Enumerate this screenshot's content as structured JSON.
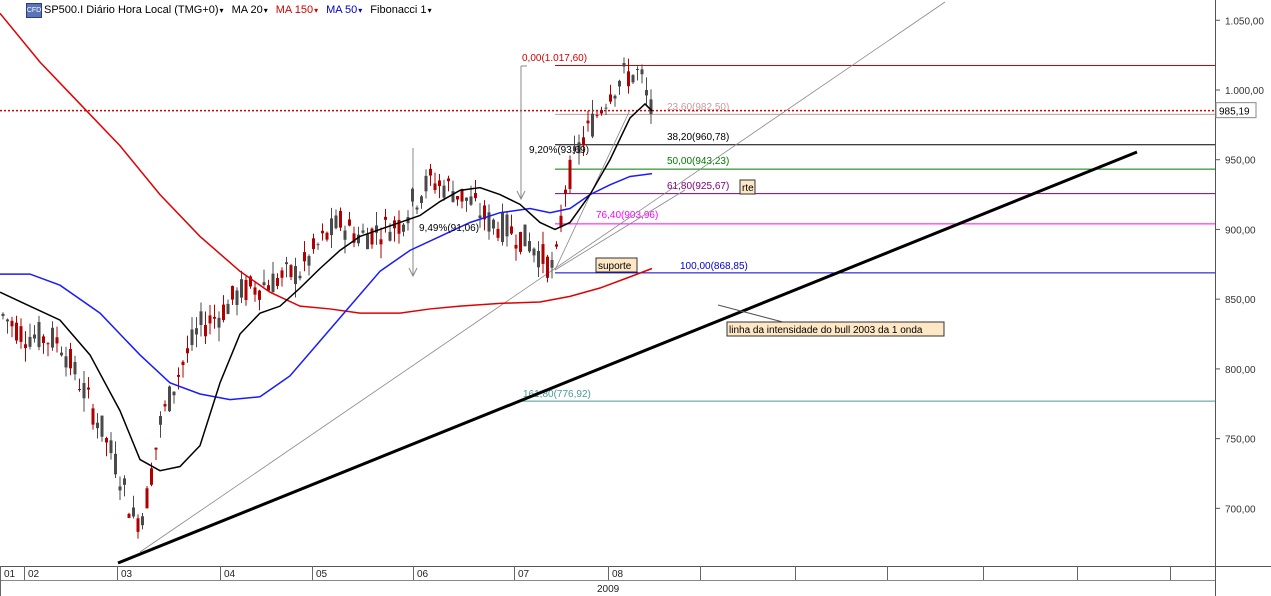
{
  "toolbar": {
    "instrument": "SP500.I Diário Hora Local (TMG+0)",
    "logo_text": "CFD",
    "indicators": [
      {
        "label": "MA 20",
        "color": "#000000"
      },
      {
        "label": "MA 150",
        "color": "#d40000"
      },
      {
        "label": "MA 50",
        "color": "#0000cc"
      },
      {
        "label": "Fibonacci 1",
        "color": "#000000"
      }
    ],
    "caret": "▾"
  },
  "chart_data": {
    "type": "candlestick",
    "y_axis_ticks": [
      "1.050,00",
      "1.000,00",
      "950,00",
      "900,00",
      "850,00",
      "800,00",
      "750,00",
      "700,00"
    ],
    "ylim": [
      660,
      1062
    ],
    "current_price_label": "985,19",
    "month_labels": [
      "01",
      "02",
      "03",
      "04",
      "05",
      "06",
      "07",
      "08"
    ],
    "year_label": "2009",
    "fibonacci_levels": [
      {
        "label": "0,00(1.017,60)",
        "value": 1017.6,
        "color": "#d40000"
      },
      {
        "label": "23,60(982,50)",
        "value": 982.5,
        "color": "#c89a9a"
      },
      {
        "label": "38,20(960,78)",
        "value": 960.78,
        "color": "#000000"
      },
      {
        "label": "50,00(943,23)",
        "value": 943.23,
        "color": "#007a00"
      },
      {
        "label": "61,80(925,67)",
        "value": 925.67,
        "color": "#800080"
      },
      {
        "label": "76,40(903,96)",
        "value": 903.96,
        "color": "#ff00ff"
      },
      {
        "label": "100,00(868,85)",
        "value": 868.85,
        "color": "#0000cc"
      },
      {
        "label": "161,80(776,92)",
        "value": 776.92,
        "color": "#4a9a9a"
      }
    ],
    "annotations": [
      {
        "text": "9,20%(93,69)"
      },
      {
        "text": "9,49%(91,06)"
      },
      {
        "text": "suporte"
      },
      {
        "text": "rte"
      },
      {
        "text": "linha da intensidade do bull 2003 da 1 onda"
      }
    ],
    "ma_legend": [
      "MA 20",
      "MA 50",
      "MA 150"
    ]
  },
  "colors": {
    "up_candle": "#4a4a4a",
    "down_candle": "#b00000",
    "ma20": "#000000",
    "ma50": "#1a1aff",
    "ma150": "#e00000",
    "note_bg": "#fde7c4"
  }
}
